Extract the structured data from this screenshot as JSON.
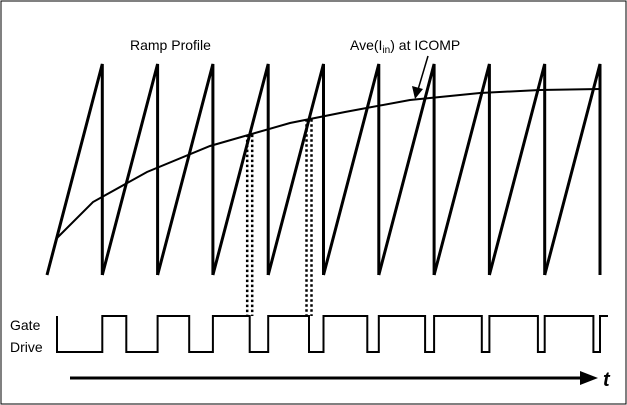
{
  "labels": {
    "ramp_profile": "Ramp Profile",
    "ave_prefix": "Ave(I",
    "ave_subscript": "in",
    "ave_suffix": ") at ICOMP",
    "gate_line1": "Gate",
    "gate_line2": "Drive",
    "time_axis": "t"
  },
  "waveform": {
    "ramp_cycles": 10,
    "highlighted_cycles": [
      4,
      5
    ]
  },
  "colors": {
    "line": "#000000",
    "background": "#ffffff"
  }
}
